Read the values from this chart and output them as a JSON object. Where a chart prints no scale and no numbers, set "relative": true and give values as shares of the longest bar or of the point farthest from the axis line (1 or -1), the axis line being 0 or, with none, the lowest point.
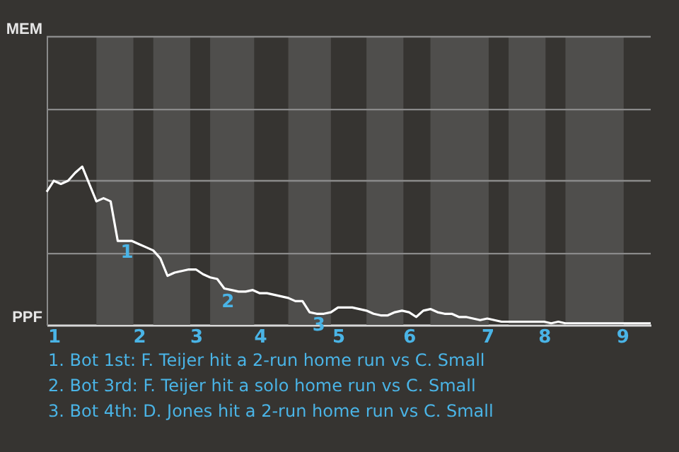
{
  "chart_data": {
    "type": "line",
    "relative": true,
    "ref_lines": [
      {
        "axis": "y",
        "value": 0.45
      },
      {
        "axis": "y",
        "value": 0.91
      },
      {
        "axis": "y",
        "value": 1.36
      },
      {
        "axis": "y",
        "value": 1.82
      }
    ],
    "categories": [
      null,
      "1",
      null,
      null,
      null,
      null,
      null,
      null,
      null,
      null,
      null,
      null,
      null,
      "2",
      null,
      null,
      null,
      null,
      null,
      null,
      null,
      "3",
      null,
      null,
      null,
      null,
      null,
      null,
      null,
      null,
      "4",
      null,
      null,
      null,
      null,
      null,
      null,
      null,
      null,
      null,
      null,
      "5",
      null,
      null,
      null,
      null,
      null,
      null,
      null,
      null,
      null,
      "6",
      null,
      null,
      null,
      null,
      null,
      null,
      null,
      null,
      null,
      null,
      "7",
      null,
      null,
      null,
      null,
      null,
      null,
      null,
      "8",
      null,
      null,
      null,
      null,
      null,
      null,
      null,
      null,
      null,
      null,
      "9",
      null,
      null,
      null,
      null
    ],
    "series": [
      {
        "color": "#ffffff",
        "values": [
          0.84,
          0.91,
          0.89,
          0.91,
          0.96,
          1,
          0.89,
          0.78,
          0.8,
          0.78,
          0.53,
          0.53,
          0.53,
          0.51,
          0.49,
          0.47,
          0.42,
          0.31,
          0.33,
          0.34,
          0.35,
          0.35,
          0.32,
          0.3,
          0.29,
          0.23,
          0.22,
          0.21,
          0.21,
          0.22,
          0.2,
          0.2,
          0.19,
          0.18,
          0.17,
          0.15,
          0.15,
          0.08,
          0.07,
          0.07,
          0.08,
          0.11,
          0.11,
          0.11,
          0.1,
          0.09,
          0.07,
          0.06,
          0.06,
          0.08,
          0.09,
          0.08,
          0.05,
          0.09,
          0.1,
          0.08,
          0.07,
          0.07,
          0.05,
          0.05,
          0.04,
          0.03,
          0.04,
          0.03,
          0.02,
          0.02,
          0.02,
          0.02,
          0.02,
          0.02,
          0.02,
          0.01,
          0.02,
          0.01,
          0.01,
          0.01,
          0.01,
          0.01,
          0.01,
          0.01,
          0.01,
          0.01,
          0.01,
          0.01,
          0.01,
          0.01
        ]
      }
    ],
    "annotations": [
      "MEM",
      "PPF",
      {
        "text": "1",
        "y": 0.53
      },
      {
        "text": "2",
        "y": 0.22
      },
      {
        "text": "3",
        "y": 0.07
      },
      "1. Bot 1st: F. Teijer hit a 2-run home run vs C. Small",
      "2. Bot 3rd: F. Teijer hit a solo home run vs C. Small",
      "3. Bot 4th: D. Jones hit a 2-run home run vs C. Small"
    ]
  }
}
